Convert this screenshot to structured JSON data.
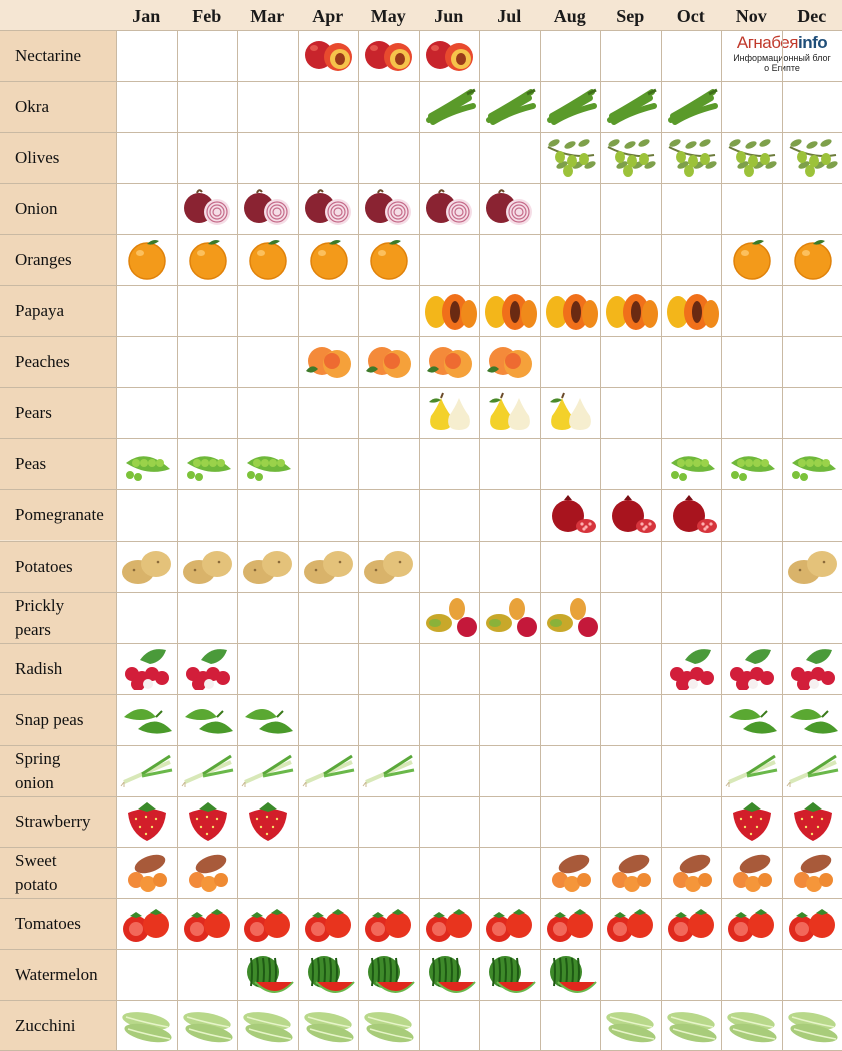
{
  "chart_data": {
    "type": "table",
    "months": [
      "Jan",
      "Feb",
      "Mar",
      "Apr",
      "May",
      "Jun",
      "Jul",
      "Aug",
      "Sep",
      "Oct",
      "Nov",
      "Dec"
    ],
    "rows": [
      {
        "label": "Nectarine",
        "icon": "nectarine-icon",
        "months": [
          4,
          5,
          6
        ]
      },
      {
        "label": "Okra",
        "icon": "okra-icon",
        "months": [
          6,
          7,
          8,
          9,
          10
        ]
      },
      {
        "label": "Olives",
        "icon": "olives-icon",
        "months": [
          8,
          9,
          10,
          11,
          12
        ]
      },
      {
        "label": "Onion",
        "icon": "onion-icon",
        "months": [
          2,
          3,
          4,
          5,
          6,
          7
        ]
      },
      {
        "label": "Oranges",
        "icon": "orange-icon",
        "months": [
          1,
          2,
          3,
          4,
          5,
          11,
          12
        ]
      },
      {
        "label": "Papaya",
        "icon": "papaya-icon",
        "months": [
          6,
          7,
          8,
          9,
          10
        ]
      },
      {
        "label": "Peaches",
        "icon": "peach-icon",
        "months": [
          4,
          5,
          6,
          7
        ]
      },
      {
        "label": "Pears",
        "icon": "pear-icon",
        "months": [
          6,
          7,
          8
        ]
      },
      {
        "label": "Peas",
        "icon": "peas-icon",
        "months": [
          1,
          2,
          3,
          10,
          11,
          12
        ]
      },
      {
        "label": "Pomegranate",
        "icon": "pomegranate-icon",
        "months": [
          8,
          9,
          10
        ]
      },
      {
        "label": "Potatoes",
        "icon": "potato-icon",
        "months": [
          1,
          2,
          3,
          4,
          5,
          12
        ]
      },
      {
        "label": "Prickly pears",
        "icon": "prickly-pear-icon",
        "months": [
          6,
          7,
          8
        ]
      },
      {
        "label": "Radish",
        "icon": "radish-icon",
        "months": [
          1,
          2,
          10,
          11,
          12
        ]
      },
      {
        "label": "Snap peas",
        "icon": "snap-peas-icon",
        "months": [
          1,
          2,
          3,
          11,
          12
        ]
      },
      {
        "label": "Spring onion",
        "icon": "spring-onion-icon",
        "months": [
          1,
          2,
          3,
          4,
          5,
          11,
          12
        ]
      },
      {
        "label": "Strawberry",
        "icon": "strawberry-icon",
        "months": [
          1,
          2,
          3,
          11,
          12
        ]
      },
      {
        "label": "Sweet potato",
        "icon": "sweet-potato-icon",
        "months": [
          1,
          2,
          8,
          9,
          10,
          11,
          12
        ]
      },
      {
        "label": "Tomatoes",
        "icon": "tomato-icon",
        "months": [
          1,
          2,
          3,
          4,
          5,
          6,
          7,
          8,
          9,
          10,
          11,
          12
        ]
      },
      {
        "label": "Watermelon",
        "icon": "watermelon-icon",
        "months": [
          3,
          4,
          5,
          6,
          7,
          8
        ]
      },
      {
        "label": "Zucchini",
        "icon": "zucchini-icon",
        "months": [
          1,
          2,
          3,
          4,
          5,
          9,
          10,
          11,
          12
        ]
      }
    ]
  },
  "logo": {
    "brand_part1": "Агнабея",
    "brand_part2": "info",
    "subtitle": "Информационный блог о Египте"
  },
  "colors": {
    "label_bg": "#f0d7b9",
    "header_bg": "#f5e6d3",
    "grid_line": "#c9b9a3",
    "cell_bg": "#ffffff"
  }
}
